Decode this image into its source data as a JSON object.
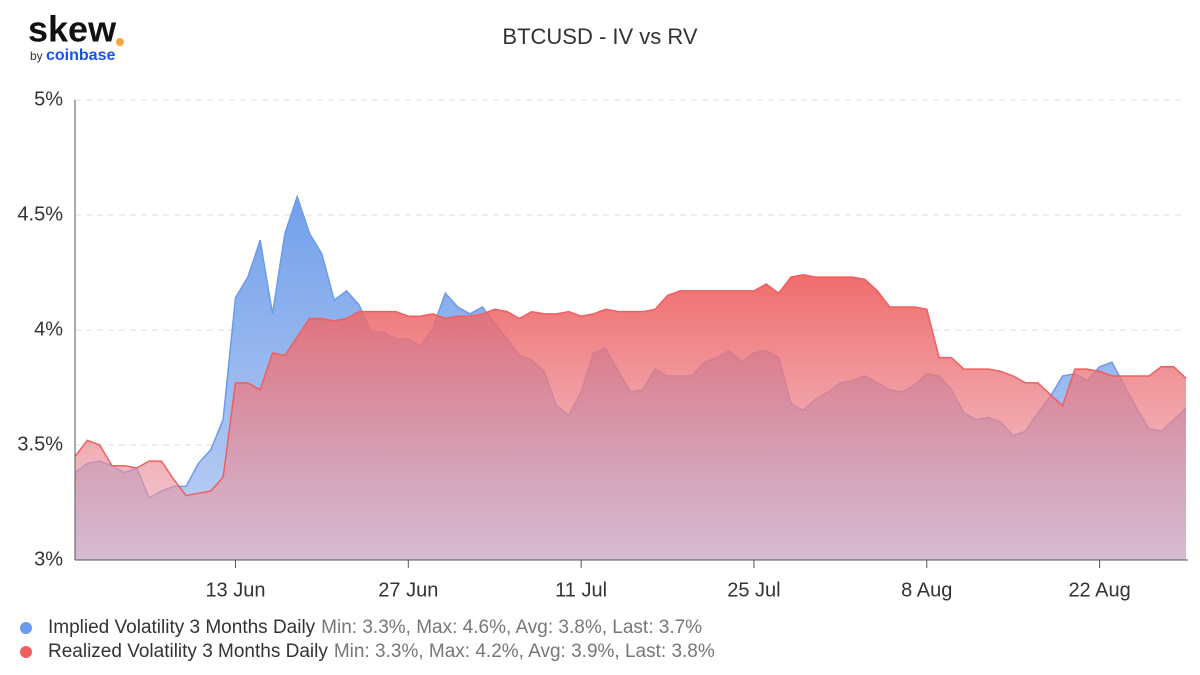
{
  "logo": {
    "name": "skew",
    "byline": "by",
    "brand": "coinbase"
  },
  "chart_data": {
    "type": "area",
    "title": "BTCUSD - IV vs RV",
    "categories": [
      null,
      null,
      null,
      null,
      null,
      null,
      null,
      null,
      null,
      null,
      null,
      null,
      null,
      "13 Jun",
      null,
      null,
      null,
      null,
      null,
      null,
      null,
      null,
      null,
      null,
      null,
      null,
      null,
      "27 Jun",
      null,
      null,
      null,
      null,
      null,
      null,
      null,
      null,
      null,
      null,
      null,
      null,
      null,
      "11 Jul",
      null,
      null,
      null,
      null,
      null,
      null,
      null,
      null,
      null,
      null,
      null,
      null,
      null,
      "25 Jul",
      null,
      null,
      null,
      null,
      null,
      null,
      null,
      null,
      null,
      null,
      null,
      null,
      null,
      "8 Aug",
      null,
      null,
      null,
      null,
      null,
      null,
      null,
      null,
      null,
      null,
      null,
      null,
      null,
      "22 Aug",
      null,
      null,
      null,
      null,
      null,
      null,
      null
    ],
    "ylim": [
      3,
      5
    ],
    "yticks": [
      {
        "value": 3,
        "label": "3%"
      },
      {
        "value": 3.5,
        "label": "3.5%"
      },
      {
        "value": 4,
        "label": "4%"
      },
      {
        "value": 4.5,
        "label": "4.5%"
      },
      {
        "value": 5,
        "label": "5%"
      }
    ],
    "grid": true,
    "series": [
      {
        "name": "Implied Volatility 3 Months Daily",
        "stats": "Min: 3.3%, Max: 4.6%, Avg: 3.8%, Last: 3.7%",
        "color": "#6b9bea",
        "values": [
          3.38,
          3.42,
          3.43,
          3.41,
          3.38,
          3.4,
          3.27,
          3.3,
          3.32,
          3.32,
          3.42,
          3.48,
          3.61,
          4.14,
          4.23,
          4.39,
          4.07,
          4.42,
          4.58,
          4.42,
          4.33,
          4.13,
          4.17,
          4.11,
          3.99,
          3.99,
          3.96,
          3.96,
          3.93,
          4.01,
          4.16,
          4.1,
          4.07,
          4.1,
          4.03,
          3.96,
          3.89,
          3.87,
          3.82,
          3.67,
          3.63,
          3.73,
          3.9,
          3.92,
          3.82,
          3.73,
          3.74,
          3.83,
          3.8,
          3.8,
          3.8,
          3.86,
          3.88,
          3.91,
          3.86,
          3.9,
          3.91,
          3.88,
          3.68,
          3.65,
          3.7,
          3.73,
          3.77,
          3.78,
          3.8,
          3.77,
          3.74,
          3.73,
          3.76,
          3.81,
          3.8,
          3.74,
          3.64,
          3.61,
          3.62,
          3.6,
          3.54,
          3.56,
          3.64,
          3.71,
          3.8,
          3.81,
          3.78,
          3.84,
          3.86,
          3.76,
          3.66,
          3.57,
          3.56,
          3.61,
          3.66
        ]
      },
      {
        "name": "Realized Volatility 3 Months Daily",
        "stats": "Min: 3.3%, Max: 4.2%, Avg: 3.9%, Last: 3.8%",
        "color": "#ef5f5f",
        "values": [
          3.45,
          3.52,
          3.5,
          3.41,
          3.41,
          3.4,
          3.43,
          3.43,
          3.35,
          3.28,
          3.29,
          3.3,
          3.36,
          3.77,
          3.77,
          3.74,
          3.9,
          3.89,
          3.97,
          4.05,
          4.05,
          4.04,
          4.05,
          4.08,
          4.08,
          4.08,
          4.08,
          4.06,
          4.06,
          4.07,
          4.05,
          4.06,
          4.06,
          4.07,
          4.09,
          4.08,
          4.05,
          4.08,
          4.07,
          4.07,
          4.08,
          4.06,
          4.07,
          4.09,
          4.08,
          4.08,
          4.08,
          4.09,
          4.15,
          4.17,
          4.17,
          4.17,
          4.17,
          4.17,
          4.17,
          4.17,
          4.2,
          4.16,
          4.23,
          4.24,
          4.23,
          4.23,
          4.23,
          4.23,
          4.22,
          4.17,
          4.1,
          4.1,
          4.1,
          4.09,
          3.88,
          3.88,
          3.83,
          3.83,
          3.83,
          3.82,
          3.8,
          3.77,
          3.77,
          3.72,
          3.67,
          3.83,
          3.83,
          3.82,
          3.8,
          3.8,
          3.8,
          3.8,
          3.84,
          3.84,
          3.79
        ]
      }
    ]
  }
}
